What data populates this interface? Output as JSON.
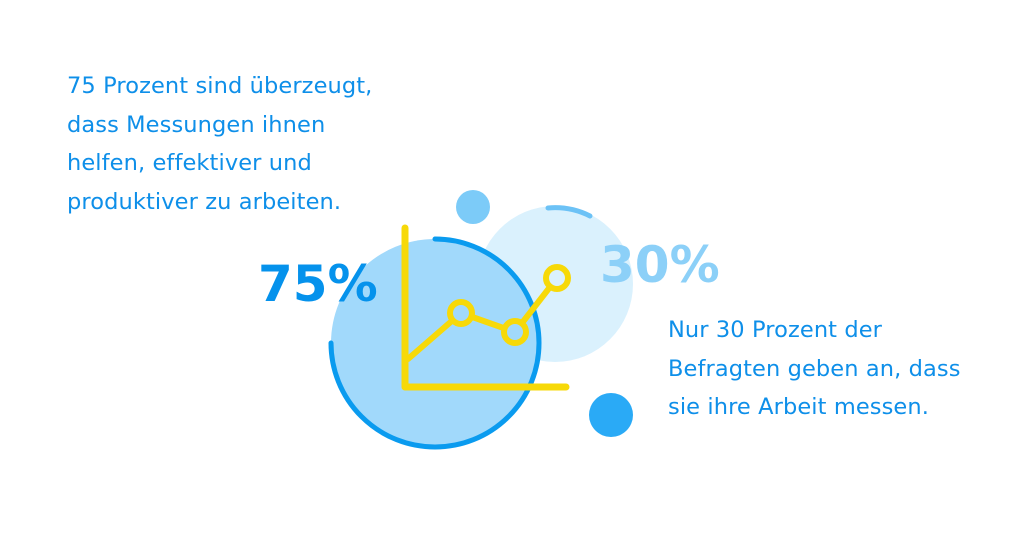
{
  "statements": {
    "high": {
      "percent": "75%",
      "text": "75 Prozent sind überzeugt,\ndass Messungen ihnen\nhelfen, effektiver und\nproduktiver zu arbeiten."
    },
    "low": {
      "percent": "30%",
      "text": "Nur 30 Prozent der\nBefragten geben an, dass\nsie ihre Arbeit messen."
    }
  },
  "colors": {
    "text_blue": "#0e8fe9",
    "strong_blue": "#0592ec",
    "pale_blue": "#8cd0f8",
    "circle_large_fill": "#a1d9fb",
    "circle_back_fill": "#daf1fd",
    "accent_dot_light": "#7ccbf8",
    "accent_dot_dark": "#2aaaf6",
    "chart_yellow": "#f7d908"
  },
  "icons": {
    "chart": "line-chart-icon"
  }
}
